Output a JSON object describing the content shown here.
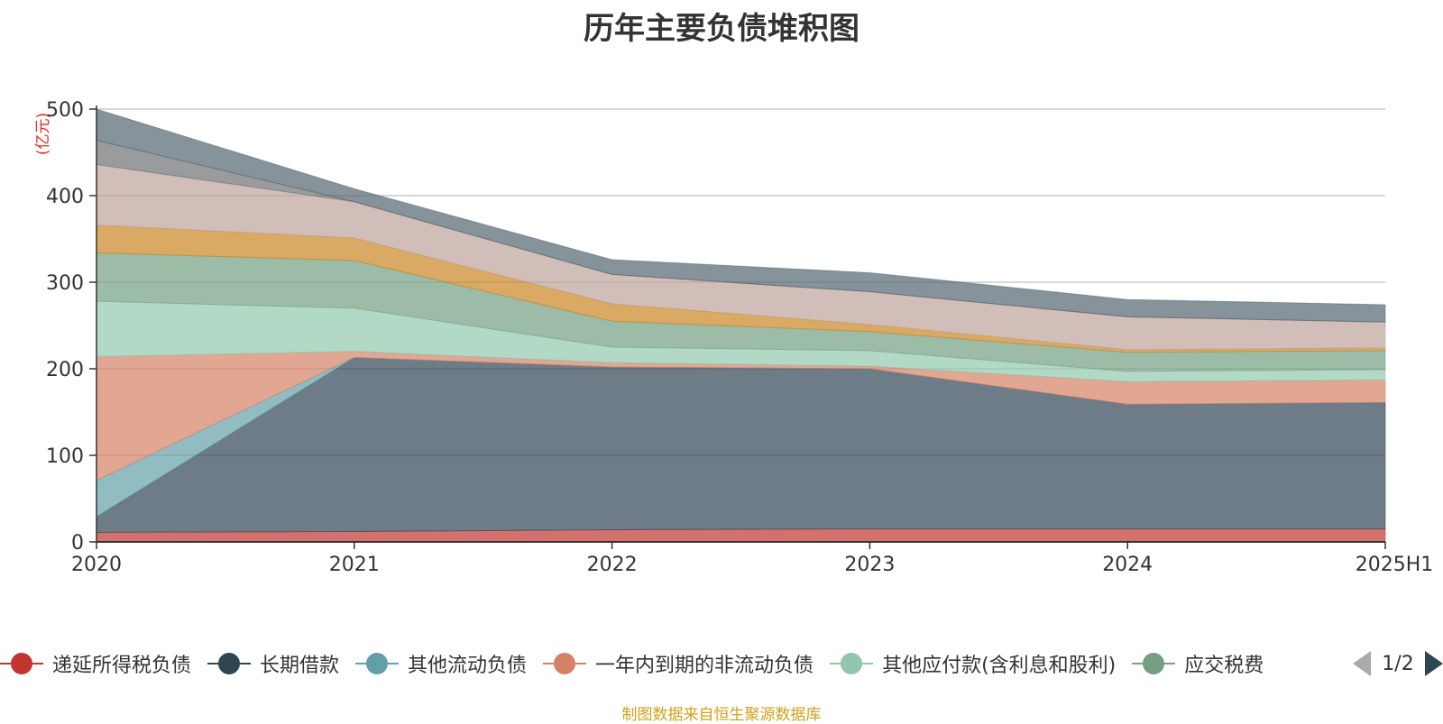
{
  "chart_data": {
    "type": "area",
    "stacked": true,
    "title": "历年主要负债堆积图",
    "unit_label": "(亿元)",
    "x": [
      "2020",
      "2021",
      "2022",
      "2023",
      "2024",
      "2025H1"
    ],
    "ylim": [
      0,
      500
    ],
    "yticks": [
      0,
      100,
      200,
      300,
      400,
      500
    ],
    "grid": true,
    "legend_position": "bottom",
    "series": [
      {
        "name": "递延所得税负债",
        "color": "#c23531",
        "values": [
          11,
          12,
          14,
          15,
          15,
          15
        ]
      },
      {
        "name": "长期借款",
        "color": "#2f4554",
        "values": [
          18,
          201,
          188,
          185,
          144,
          146
        ]
      },
      {
        "name": "其他流动负债",
        "color": "#61a0a8",
        "values": [
          42,
          0,
          0,
          0,
          0,
          0
        ]
      },
      {
        "name": "一年内到期的非流动负债",
        "color": "#d48265",
        "values": [
          143,
          7,
          5,
          3,
          26,
          26
        ]
      },
      {
        "name": "其他应付款(含利息和股利)",
        "color": "#91c7ae",
        "values": [
          64,
          50,
          18,
          18,
          12,
          12
        ]
      },
      {
        "name": "应交税费",
        "color": "#749f83",
        "values": [
          56,
          55,
          30,
          22,
          22,
          22
        ]
      },
      {
        "name": "",
        "color": "#ca8622",
        "values": [
          32,
          26,
          20,
          8,
          3,
          3
        ]
      },
      {
        "name": "",
        "color": "#bda29a",
        "values": [
          70,
          42,
          34,
          38,
          38,
          30
        ]
      },
      {
        "name": "",
        "color": "#6e7074",
        "values": [
          28,
          0,
          0,
          0,
          0,
          0
        ]
      },
      {
        "name": "",
        "color": "#546570",
        "values": [
          36,
          15,
          17,
          22,
          20,
          20
        ]
      }
    ],
    "legend_visible": [
      {
        "label": "递延所得税负债",
        "color": "#c23531"
      },
      {
        "label": "长期借款",
        "color": "#2f4554"
      },
      {
        "label": "其他流动负债",
        "color": "#61a0a8"
      },
      {
        "label": "一年内到期的非流动负债",
        "color": "#d48265"
      },
      {
        "label": "其他应付款(含利息和股利)",
        "color": "#91c7ae"
      },
      {
        "label": "应交税费",
        "color": "#749f83"
      }
    ],
    "legend_pager": "1/2"
  },
  "footer": "制图数据来自恒生聚源数据库"
}
